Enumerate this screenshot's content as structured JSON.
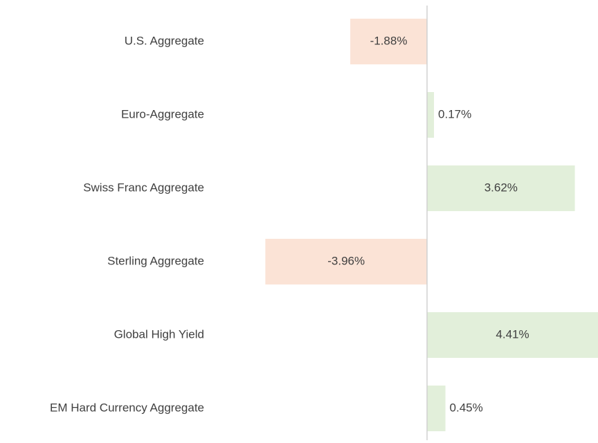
{
  "chart_data": {
    "type": "bar",
    "orientation": "horizontal",
    "categories": [
      "U.S. Aggregate",
      "Euro-Aggregate",
      "Swiss Franc Aggregate",
      "Sterling Aggregate",
      "Global High Yield",
      "EM Hard Currency Aggregate"
    ],
    "values": [
      -1.88,
      0.17,
      3.62,
      -3.96,
      4.41,
      0.45
    ],
    "value_labels": [
      "-1.88%",
      "0.17%",
      "3.62%",
      "-3.96%",
      "4.41%",
      "0.45%"
    ],
    "positive_color": "#e2efda",
    "negative_color": "#fbe3d6"
  }
}
